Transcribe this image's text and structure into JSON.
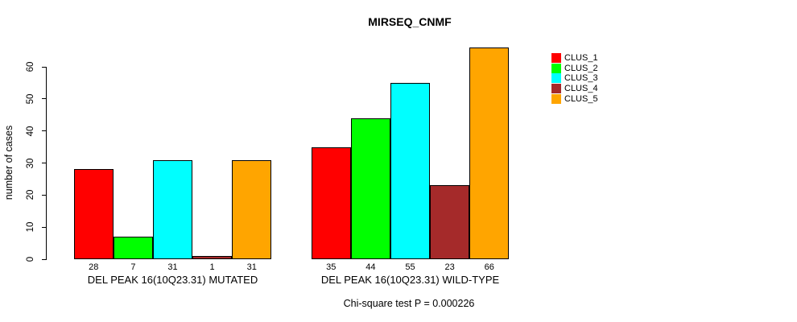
{
  "title": "MIRSEQ_CNMF",
  "chart_data": {
    "type": "bar",
    "title": "MIRSEQ_CNMF",
    "xlabel": "",
    "ylabel": "number of cases",
    "ylim": [
      0,
      66
    ],
    "yticks": [
      0,
      10,
      20,
      30,
      40,
      50,
      60
    ],
    "grid": false,
    "legend_position": "right",
    "bar_value_labels_shown": true,
    "series_names": [
      "CLUS_1",
      "CLUS_2",
      "CLUS_3",
      "CLUS_4",
      "CLUS_5"
    ],
    "series_colors": [
      "#FF0000",
      "#00FF00",
      "#00FFFF",
      "#A52A2A",
      "#FFA500"
    ],
    "groups": [
      {
        "label": "DEL PEAK 16(10Q23.31) MUTATED",
        "values": [
          28,
          7,
          31,
          1,
          31
        ]
      },
      {
        "label": "DEL PEAK 16(10Q23.31) WILD-TYPE",
        "values": [
          35,
          44,
          55,
          23,
          66
        ]
      }
    ]
  },
  "footer": {
    "caption": "Chi-square test P = 0.000226"
  }
}
